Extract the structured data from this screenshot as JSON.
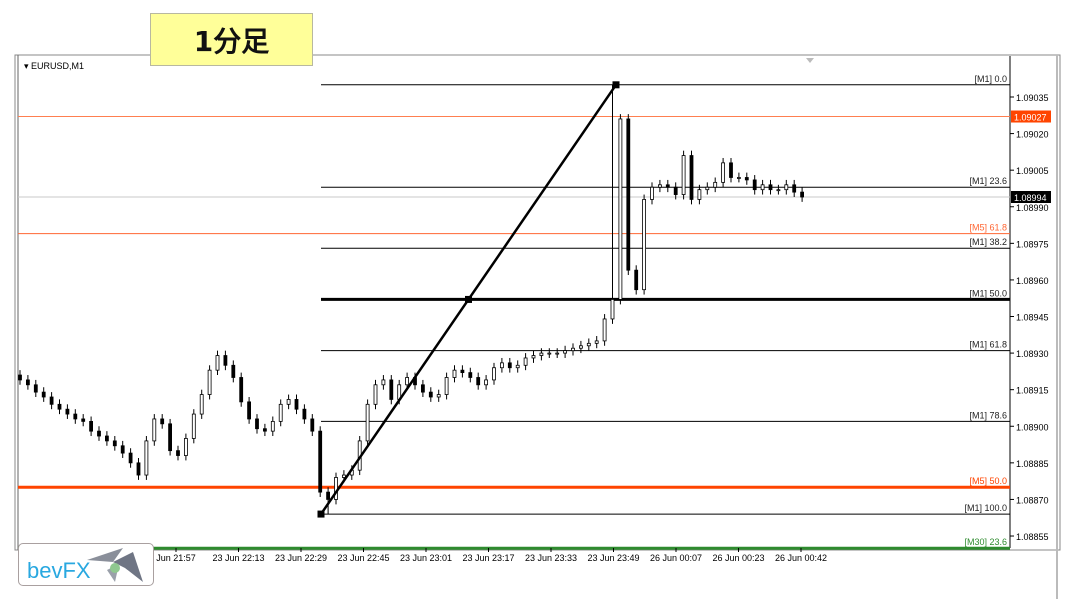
{
  "overlay_label": "1分足",
  "logo_text": "bevFX",
  "chart_data": {
    "type": "candlestick",
    "symbol": "EURUSD,M1",
    "timeframe": "M1",
    "ylim": [
      1.0885,
      1.09045
    ],
    "y_ticks": [
      "1.09035",
      "1.09020",
      "1.09005",
      "1.08990",
      "1.08975",
      "1.08960",
      "1.08945",
      "1.08930",
      "1.08915",
      "1.08900",
      "1.08885",
      "1.08870",
      "1.08855"
    ],
    "x_ticks": [
      "Jun 21:57",
      "23 Jun 22:13",
      "23 Jun 22:29",
      "23 Jun 22:45",
      "23 Jun 23:01",
      "23 Jun 23:17",
      "23 Jun 23:33",
      "23 Jun 23:49",
      "26 Jun 00:07",
      "26 Jun 00:23",
      "26 Jun 00:42"
    ],
    "close": [
      1.08919,
      1.08917,
      1.08914,
      1.08912,
      1.08909,
      1.08907,
      1.08905,
      1.08903,
      1.08902,
      1.08898,
      1.08896,
      1.08894,
      1.08892,
      1.08889,
      1.08885,
      1.0888,
      1.08894,
      1.08903,
      1.08901,
      1.0889,
      1.08888,
      1.08895,
      1.08905,
      1.08913,
      1.08923,
      1.08929,
      1.08925,
      1.0892,
      1.0891,
      1.08903,
      1.08899,
      1.08898,
      1.08902,
      1.08909,
      1.08911,
      1.08907,
      1.08903,
      1.08898,
      1.08873,
      1.0887,
      1.08879,
      1.0888,
      1.08882,
      1.08894,
      1.08909,
      1.08917,
      1.08919,
      1.08911,
      1.08917,
      1.0892,
      1.08917,
      1.08914,
      1.08912,
      1.08913,
      1.0892,
      1.08923,
      1.08922,
      1.0892,
      1.08917,
      1.08919,
      1.08924,
      1.08926,
      1.08924,
      1.08925,
      1.08928,
      1.08929,
      1.0893,
      1.0893,
      1.0893,
      1.08931,
      1.08932,
      1.08933,
      1.08934,
      1.08935,
      1.08944,
      1.08952,
      1.09026,
      1.08964,
      1.08956,
      1.08993,
      1.08998,
      1.08999,
      1.08998,
      1.08995,
      1.09011,
      1.08993,
      1.08997,
      1.08998,
      1.09,
      1.09008,
      1.09002,
      1.09002,
      1.09001,
      1.08997,
      1.08999,
      1.08997,
      1.08997,
      1.08999,
      1.08996,
      1.08994
    ],
    "swing_high": 1.0904,
    "swing_low": 1.08864,
    "current_price": "1.08994",
    "marked_price": "1.09027",
    "levels": [
      {
        "label": "[M1]  0.0",
        "price": 1.0904,
        "color": "#000000",
        "style": "fib"
      },
      {
        "label": "[M1]  23.6",
        "price": 1.08998,
        "color": "#000000",
        "style": "fib"
      },
      {
        "label": "[M1]  38.2",
        "price": 1.08973,
        "color": "#000000",
        "style": "fib"
      },
      {
        "label": "[M1]  50.0",
        "price": 1.08952,
        "color": "#000000",
        "style": "fib-bold"
      },
      {
        "label": "[M1]  61.8",
        "price": 1.08931,
        "color": "#000000",
        "style": "fib"
      },
      {
        "label": "[M1]  78.6",
        "price": 1.08902,
        "color": "#000000",
        "style": "fib"
      },
      {
        "label": "[M1]  100.0",
        "price": 1.08864,
        "color": "#000000",
        "style": "fib"
      },
      {
        "label": "[M5]  61.8",
        "price": 1.08979,
        "color": "#ff6633",
        "style": "full"
      },
      {
        "label": "[M5]  50.0",
        "price": 1.08875,
        "color": "#ff4400",
        "style": "full-bold"
      },
      {
        "label": "[M30]  23.6",
        "price": 1.0885,
        "color": "#2e8b2e",
        "style": "full-bold"
      }
    ],
    "colors": {
      "orange_line": "#ff7f50",
      "current_badge": "#000000",
      "marked_badge": "#ff4400"
    }
  }
}
